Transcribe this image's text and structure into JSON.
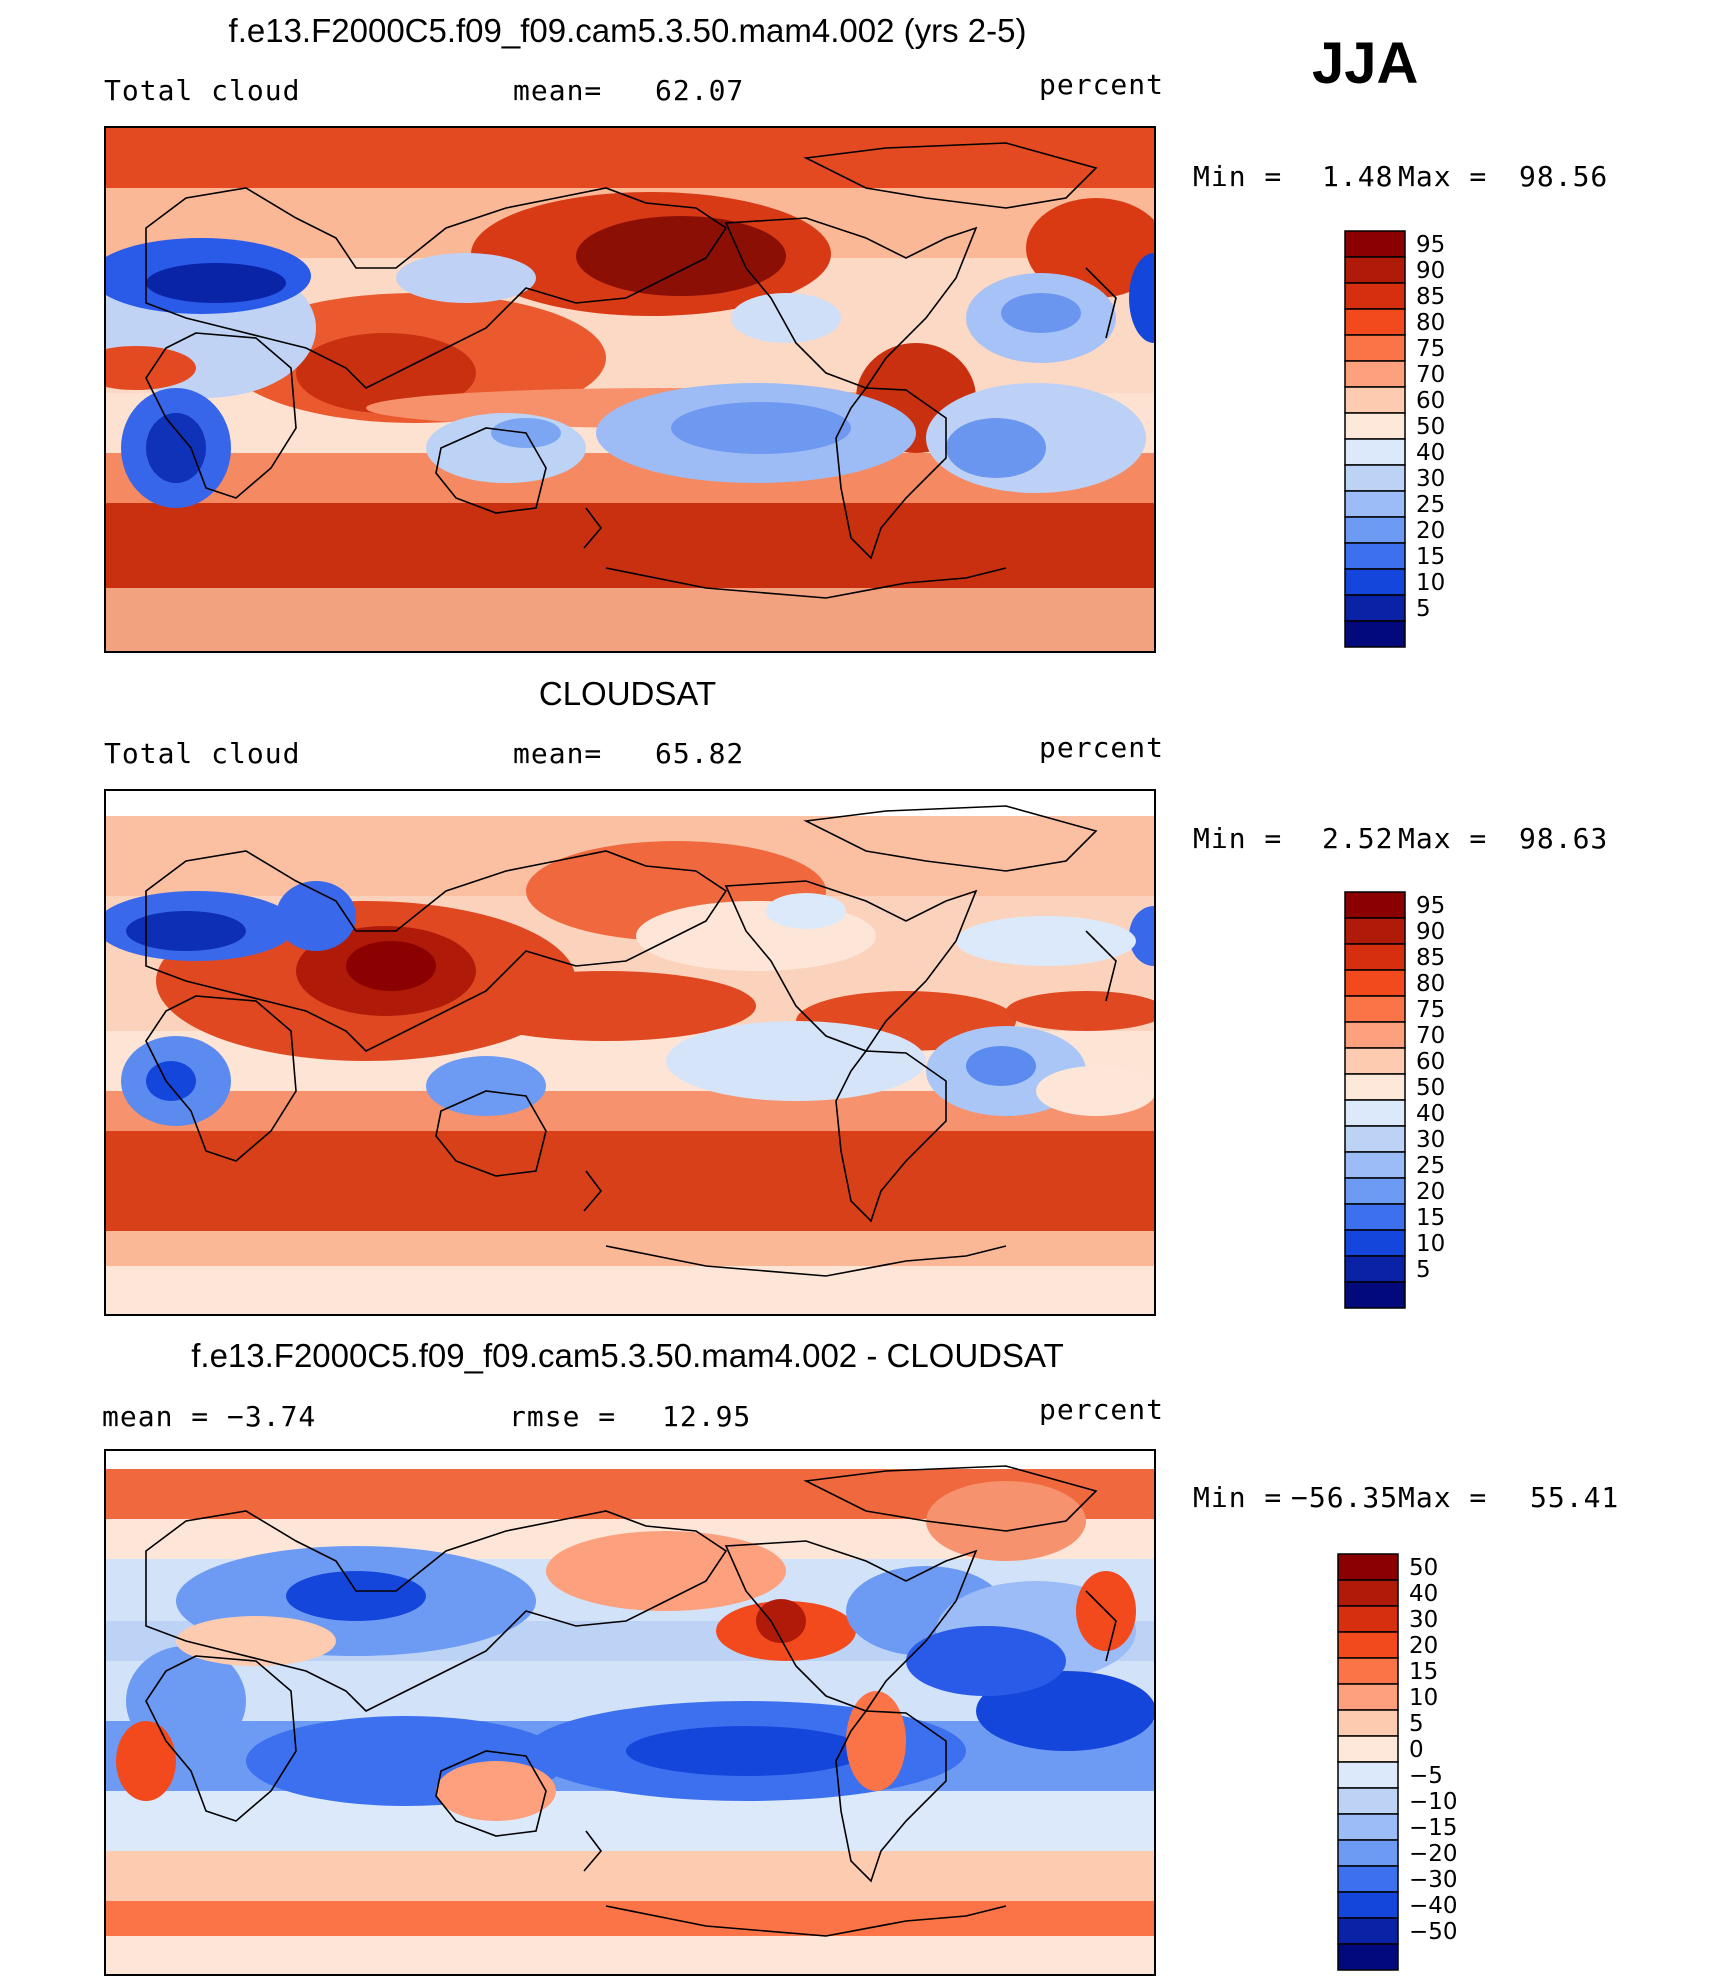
{
  "season": "JJA",
  "panels": [
    {
      "id": "model",
      "title": "f.e13.F2000C5.f09_f09.cam5.3.50.mam4.002 (yrs 2-5)",
      "left_label": "Total cloud",
      "mid_key": "mean=",
      "mid_val": "62.07",
      "units": "percent",
      "min_key": "Min =",
      "min_val": "1.48",
      "max_key": "Max =",
      "max_val": "98.56",
      "colorbar": {
        "labels": [
          "95",
          "90",
          "85",
          "80",
          "75",
          "70",
          "60",
          "50",
          "40",
          "30",
          "25",
          "20",
          "15",
          "10",
          "5"
        ],
        "colors": [
          "#8b0000",
          "#b01a08",
          "#d62f0f",
          "#f24a1d",
          "#fa7448",
          "#fda07d",
          "#fdcbb0",
          "#fde8da",
          "#dce9fa",
          "#bdd3f6",
          "#9bbcf6",
          "#6d9bf3",
          "#3d70ee",
          "#1546dc",
          "#0a22a6",
          "#02097a"
        ]
      }
    },
    {
      "id": "obs",
      "title": "CLOUDSAT",
      "left_label": "Total cloud",
      "mid_key": "mean=",
      "mid_val": "65.82",
      "units": "percent",
      "min_key": "Min =",
      "min_val": "2.52",
      "max_key": "Max =",
      "max_val": "98.63",
      "colorbar": {
        "labels": [
          "95",
          "90",
          "85",
          "80",
          "75",
          "70",
          "60",
          "50",
          "40",
          "30",
          "25",
          "20",
          "15",
          "10",
          "5"
        ],
        "colors": [
          "#8b0000",
          "#b01a08",
          "#d62f0f",
          "#f24a1d",
          "#fa7448",
          "#fda07d",
          "#fdcbb0",
          "#fde8da",
          "#dce9fa",
          "#bdd3f6",
          "#9bbcf6",
          "#6d9bf3",
          "#3d70ee",
          "#1546dc",
          "#0a22a6",
          "#02097a"
        ]
      }
    },
    {
      "id": "diff",
      "title": "f.e13.F2000C5.f09_f09.cam5.3.50.mam4.002 - CLOUDSAT",
      "left_label": "mean =  −3.74",
      "mid_key": "rmse =",
      "mid_val": "12.95",
      "units": "percent",
      "min_key": "Min =",
      "min_val": "−56.35",
      "max_key": "Max =",
      "max_val": "55.41",
      "colorbar": {
        "labels": [
          "50",
          "40",
          "30",
          "20",
          "15",
          "10",
          "5",
          "0",
          "−5",
          "−10",
          "−15",
          "−20",
          "−30",
          "−40",
          "−50"
        ],
        "colors": [
          "#8b0000",
          "#b01a08",
          "#d62f0f",
          "#f24a1d",
          "#fa7448",
          "#fda07d",
          "#fdcbb0",
          "#fde8da",
          "#dce9fa",
          "#bdd3f6",
          "#9bbcf6",
          "#6d9bf3",
          "#3d70ee",
          "#1546dc",
          "#0a22a6",
          "#02097a"
        ]
      }
    }
  ]
}
